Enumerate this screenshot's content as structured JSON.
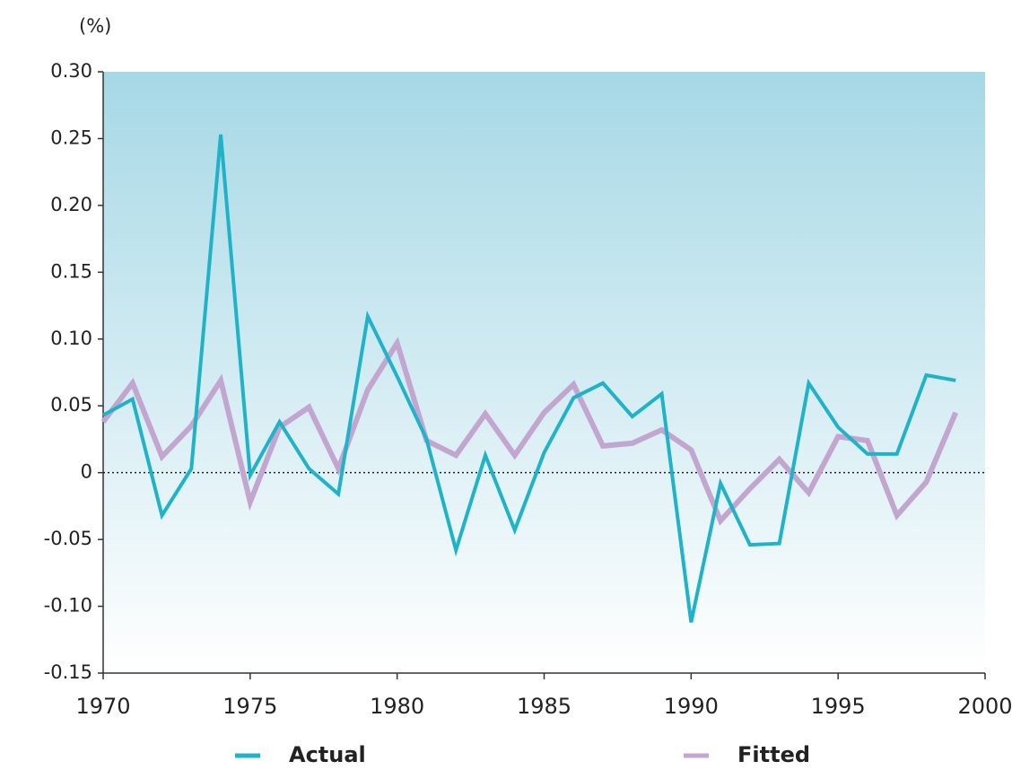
{
  "chart_data": {
    "type": "line",
    "unit_label": "(%)",
    "x": [
      1970,
      1971,
      1972,
      1973,
      1974,
      1975,
      1976,
      1977,
      1978,
      1979,
      1980,
      1981,
      1982,
      1983,
      1984,
      1985,
      1986,
      1987,
      1988,
      1989,
      1990,
      1991,
      1992,
      1993,
      1994,
      1995,
      1996,
      1997,
      1998,
      1999
    ],
    "series": [
      {
        "name": "Actual",
        "color": "#1fb3c9",
        "values": [
          0.043,
          0.055,
          -0.032,
          0.003,
          0.253,
          -0.002,
          0.038,
          0.003,
          -0.016,
          0.117,
          0.072,
          0.025,
          -0.058,
          0.013,
          -0.043,
          0.015,
          0.056,
          0.067,
          0.042,
          0.059,
          -0.112,
          -0.008,
          -0.054,
          -0.053,
          0.067,
          0.034,
          0.014,
          0.014,
          0.073,
          0.069
        ]
      },
      {
        "name": "Fitted",
        "color": "#c3a6d0",
        "values": [
          0.038,
          0.067,
          0.012,
          0.035,
          0.069,
          -0.022,
          0.034,
          0.049,
          0.003,
          0.062,
          0.097,
          0.024,
          0.013,
          0.044,
          0.013,
          0.045,
          0.066,
          0.02,
          0.022,
          0.032,
          0.017,
          -0.036,
          -0.012,
          0.01,
          -0.015,
          0.027,
          0.024,
          -0.032,
          -0.007,
          0.045
        ]
      }
    ],
    "xlim": [
      1970,
      2000
    ],
    "xticks": [
      1970,
      1975,
      1980,
      1985,
      1990,
      1995,
      2000
    ],
    "ylim": [
      -0.15,
      0.3
    ],
    "yticks": [
      {
        "value": 0.3,
        "label": "0.30"
      },
      0.25,
      {
        "value": 0.2,
        "label": "0.20"
      },
      0.15,
      {
        "value": 0.1,
        "label": "0.10"
      },
      0.05,
      0,
      -0.05,
      {
        "value": -0.1,
        "label": "-0.10"
      },
      -0.15
    ]
  }
}
